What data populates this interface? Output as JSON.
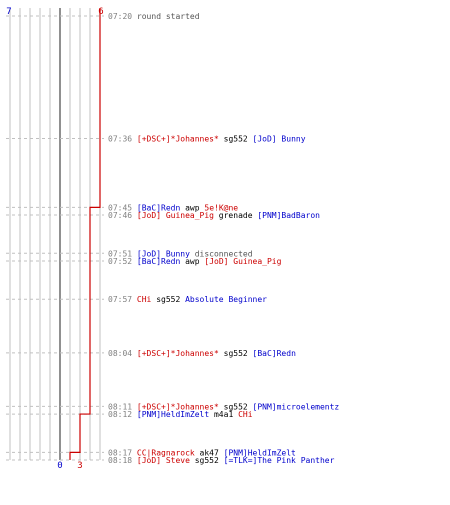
{
  "colors": {
    "blue": "#0000cc",
    "red": "#cc0000",
    "gray": "#555555",
    "black": "#000000",
    "dim": "#808080",
    "grid": "#c0c0c0",
    "center": "#606060"
  },
  "teams": {
    "blue": {
      "start": 7,
      "end": 0
    },
    "red": {
      "start": 6,
      "end": 3
    }
  },
  "chart_data": {
    "type": "line",
    "ylim": [
      "07:20",
      "08:18"
    ],
    "blue_alive_over_time": [
      {
        "time": "07:20",
        "alive": 7
      },
      {
        "time": "07:36",
        "alive": 6
      },
      {
        "time": "07:45",
        "alive": 5
      },
      {
        "time": "07:52",
        "alive": 4
      },
      {
        "time": "07:57",
        "alive": 3
      },
      {
        "time": "08:04",
        "alive": 2
      },
      {
        "time": "08:11",
        "alive": 1
      },
      {
        "time": "08:18",
        "alive": 0
      }
    ],
    "red_alive_over_time": [
      {
        "time": "07:20",
        "alive": 6
      },
      {
        "time": "07:45",
        "alive": 5
      },
      {
        "time": "08:12",
        "alive": 4
      },
      {
        "time": "08:17",
        "alive": 3
      }
    ]
  },
  "events": [
    {
      "time": "07:20",
      "parts": [
        {
          "text": "round started",
          "c": "gray"
        }
      ]
    },
    {
      "time": "07:36",
      "parts": [
        {
          "text": "[+DSC+]*Johannes*",
          "c": "red"
        },
        {
          "text": " sg552 ",
          "c": "black"
        },
        {
          "text": "[JoD] Bunny",
          "c": "blue"
        }
      ]
    },
    {
      "time": "07:45",
      "parts": [
        {
          "text": "[BaC]Redn",
          "c": "blue"
        },
        {
          "text": " awp ",
          "c": "black"
        },
        {
          "text": "5e!K@ne",
          "c": "red"
        }
      ]
    },
    {
      "time": "07:46",
      "parts": [
        {
          "text": "[JoD] Guinea_Pig",
          "c": "red"
        },
        {
          "text": " grenade ",
          "c": "black"
        },
        {
          "text": "[PNM]BadBaron",
          "c": "blue"
        }
      ]
    },
    {
      "time": "07:51",
      "parts": [
        {
          "text": "[JoD] Bunny",
          "c": "blue"
        },
        {
          "text": " disconnected",
          "c": "gray"
        }
      ]
    },
    {
      "time": "07:52",
      "parts": [
        {
          "text": "[BaC]Redn",
          "c": "blue"
        },
        {
          "text": " awp ",
          "c": "black"
        },
        {
          "text": "[JoD] Guinea_Pig",
          "c": "red"
        }
      ]
    },
    {
      "time": "07:57",
      "parts": [
        {
          "text": "CHi",
          "c": "red"
        },
        {
          "text": " sg552 ",
          "c": "black"
        },
        {
          "text": "Absolute Beginner",
          "c": "blue"
        }
      ]
    },
    {
      "time": "08:04",
      "parts": [
        {
          "text": "[+DSC+]*Johannes*",
          "c": "red"
        },
        {
          "text": " sg552 ",
          "c": "black"
        },
        {
          "text": "[BaC]Redn",
          "c": "blue"
        }
      ]
    },
    {
      "time": "08:11",
      "parts": [
        {
          "text": "[+DSC+]*Johannes*",
          "c": "red"
        },
        {
          "text": " sg552 ",
          "c": "black"
        },
        {
          "text": "[PNM]microelementz",
          "c": "blue"
        }
      ]
    },
    {
      "time": "08:12",
      "parts": [
        {
          "text": "[PNM]HeldImZelt",
          "c": "blue"
        },
        {
          "text": " m4a1 ",
          "c": "black"
        },
        {
          "text": "CHi",
          "c": "red"
        }
      ]
    },
    {
      "time": "08:17",
      "parts": [
        {
          "text": "CC|Ragnarock",
          "c": "red"
        },
        {
          "text": " ak47 ",
          "c": "black"
        },
        {
          "text": "[PNM]HeldImZelt",
          "c": "blue"
        }
      ]
    },
    {
      "time": "08:18",
      "parts": [
        {
          "text": "[JoD] Steve",
          "c": "red"
        },
        {
          "text": " sg552 ",
          "c": "black"
        },
        {
          "text": "[=TLK=]The Pink Panther",
          "c": "blue"
        }
      ]
    }
  ]
}
